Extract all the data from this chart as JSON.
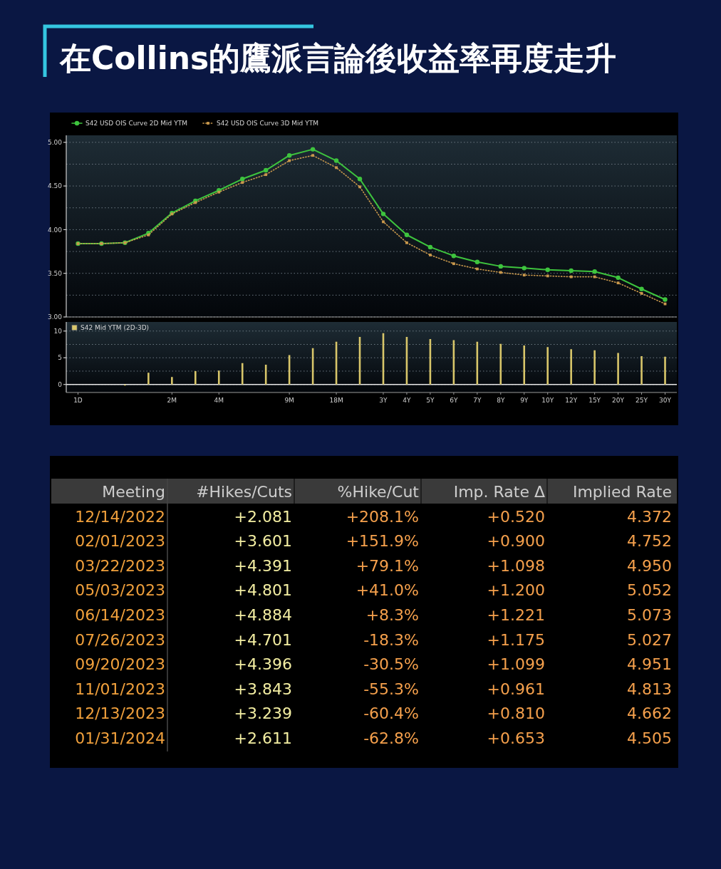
{
  "chart_data": [
    {
      "type": "line",
      "title": "在Collins的鷹派言論後收益率再度走升",
      "categories": [
        null,
        null,
        null,
        null,
        null,
        null,
        null,
        null,
        null,
        null,
        null,
        null,
        null,
        null,
        null,
        null,
        null,
        null,
        null,
        null,
        null,
        null,
        null,
        null,
        null,
        null
      ],
      "series": [
        {
          "name": "S42 USD OIS Curve 2D Mid YTM",
          "color": "#3ec43e",
          "marker": "circle",
          "line_style": "solid",
          "values": [
            3.84,
            3.84,
            3.85,
            3.96,
            4.19,
            4.33,
            4.45,
            4.58,
            4.68,
            4.85,
            4.92,
            4.79,
            4.58,
            4.18,
            3.94,
            3.8,
            3.7,
            3.63,
            3.58,
            3.56,
            3.54,
            3.53,
            3.52,
            3.45,
            3.32,
            3.2
          ]
        },
        {
          "name": "S42 USD OIS Curve 3D Mid YTM",
          "color": "#c9984c",
          "marker": "square",
          "line_style": "dotted",
          "values": [
            3.84,
            3.84,
            3.85,
            3.94,
            4.18,
            4.31,
            4.43,
            4.54,
            4.63,
            4.79,
            4.85,
            4.71,
            4.49,
            4.09,
            3.85,
            3.71,
            3.61,
            3.55,
            3.51,
            3.48,
            3.47,
            3.46,
            3.46,
            3.39,
            3.27,
            3.15
          ]
        }
      ],
      "ylim": [
        3.0,
        5.08
      ],
      "yticks": [
        {
          "value": 3,
          "label": "3.00"
        },
        {
          "value": 3.25,
          "label": null
        },
        {
          "value": 3.5,
          "label": "3.50"
        },
        {
          "value": 3.75,
          "label": null
        },
        {
          "value": 4,
          "label": "4.00"
        },
        {
          "value": 4.25,
          "label": null
        },
        {
          "value": 4.5,
          "label": "4.50"
        },
        {
          "value": 4.75,
          "label": null
        },
        {
          "value": 5,
          "label": "5.00"
        }
      ],
      "grid": "y",
      "legend": "top left"
    },
    {
      "type": "bar",
      "categories": [
        "1D",
        null,
        null,
        null,
        "2M",
        null,
        "4M",
        null,
        null,
        "9M",
        null,
        "18M",
        null,
        "3Y",
        "4Y",
        "5Y",
        "6Y",
        "7Y",
        "8Y",
        "9Y",
        "10Y",
        "12Y",
        "15Y",
        "20Y",
        "25Y",
        "30Y"
      ],
      "series": [
        {
          "name": "S42 Mid YTM (2D-3D)",
          "color": "#d8c66a",
          "values": [
            null,
            null,
            -0.2,
            2.2,
            1.4,
            2.5,
            2.6,
            4.0,
            3.7,
            5.5,
            6.8,
            8.0,
            8.9,
            9.6,
            8.9,
            8.5,
            8.3,
            8.0,
            7.6,
            7.3,
            7.0,
            6.6,
            6.4,
            5.9,
            5.3,
            5.2
          ]
        }
      ],
      "ylim": [
        -1.5,
        11.7
      ],
      "yticks": [
        0,
        {
          "value": 2.5,
          "label": null
        },
        5,
        {
          "value": 7.5,
          "label": null
        },
        10
      ],
      "grid": "y",
      "legend": "top left",
      "ref_lines": [
        {
          "axis": "y",
          "value": 0,
          "color": "#e6e6e6"
        }
      ]
    },
    {
      "type": "other",
      "categories": [
        "Meeting",
        "#Hikes/Cuts",
        "%Hike/Cut",
        "Imp. Rate Δ",
        "Implied Rate"
      ],
      "annotations": [
        "12/14/2022",
        "+2.081",
        "+208.1%",
        "+0.520",
        "4.372",
        "02/01/2023",
        "+3.601",
        "+151.9%",
        "+0.900",
        "4.752",
        "03/22/2023",
        "+4.391",
        "+79.1%",
        "+1.098",
        "4.950",
        "05/03/2023",
        "+4.801",
        "+41.0%",
        "+1.200",
        "5.052",
        "06/14/2023",
        "+4.884",
        "+8.3%",
        "+1.221",
        "5.073",
        "07/26/2023",
        "+4.701",
        "-18.3%",
        "+1.175",
        "5.027",
        "09/20/2023",
        "+4.396",
        "-30.5%",
        "+1.099",
        "4.951",
        "11/01/2023",
        "+3.843",
        "-55.3%",
        "+0.961",
        "4.813",
        "12/13/2023",
        "+3.239",
        "-60.4%",
        "+0.810",
        "4.662",
        "01/31/2024",
        "+2.611",
        "-62.8%",
        "+0.653",
        "4.505"
      ]
    }
  ]
}
